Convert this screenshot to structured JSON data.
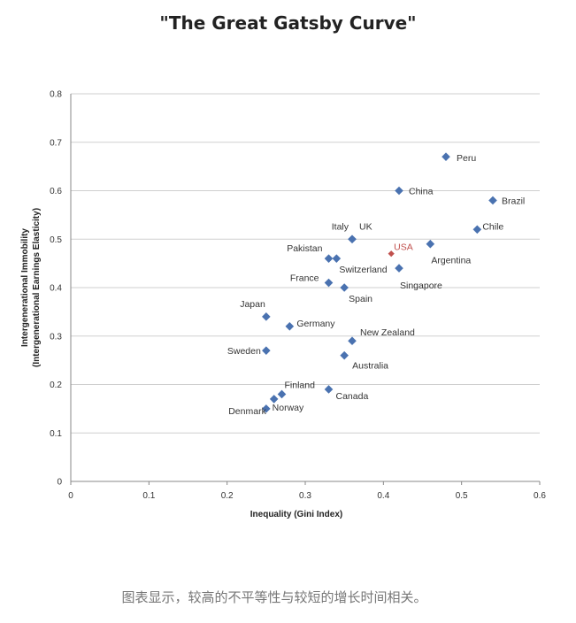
{
  "chart_data": {
    "type": "scatter",
    "title": "\"The Great Gatsby Curve\"",
    "xlabel": "Inequality (Gini Index)",
    "ylabel_line1": "Intergenerational Immobility",
    "ylabel_line2": "(Intergenerational Earnings Elasticity)",
    "xlim": [
      0,
      0.6
    ],
    "ylim": [
      0,
      0.8
    ],
    "xticks": [
      "0",
      "0.1",
      "0.2",
      "0.3",
      "0.4",
      "0.5",
      "0.6"
    ],
    "yticks": [
      "0",
      "0.1",
      "0.2",
      "0.3",
      "0.4",
      "0.5",
      "0.6",
      "0.7",
      "0.8"
    ],
    "grid": true,
    "marker_color": "#4a72b0",
    "highlight_color": "#c0504d",
    "points": [
      {
        "label": "Peru",
        "x": 0.48,
        "y": 0.67
      },
      {
        "label": "China",
        "x": 0.42,
        "y": 0.6
      },
      {
        "label": "Brazil",
        "x": 0.54,
        "y": 0.58
      },
      {
        "label": "Chile",
        "x": 0.52,
        "y": 0.52
      },
      {
        "label": "UK",
        "x": 0.36,
        "y": 0.5
      },
      {
        "label": "Italy",
        "x": 0.36,
        "y": 0.5
      },
      {
        "label": "Argentina",
        "x": 0.46,
        "y": 0.49
      },
      {
        "label": "USA",
        "x": 0.41,
        "y": 0.47,
        "highlight": true
      },
      {
        "label": "Pakistan",
        "x": 0.33,
        "y": 0.46
      },
      {
        "label": "Switzerland",
        "x": 0.34,
        "y": 0.46
      },
      {
        "label": "Singapore",
        "x": 0.42,
        "y": 0.44
      },
      {
        "label": "France",
        "x": 0.33,
        "y": 0.41
      },
      {
        "label": "Spain",
        "x": 0.35,
        "y": 0.4
      },
      {
        "label": "Japan",
        "x": 0.25,
        "y": 0.34
      },
      {
        "label": "Germany",
        "x": 0.28,
        "y": 0.32
      },
      {
        "label": "New Zealand",
        "x": 0.36,
        "y": 0.29
      },
      {
        "label": "Sweden",
        "x": 0.25,
        "y": 0.27
      },
      {
        "label": "Australia",
        "x": 0.35,
        "y": 0.26
      },
      {
        "label": "Canada",
        "x": 0.33,
        "y": 0.19
      },
      {
        "label": "Finland",
        "x": 0.27,
        "y": 0.18
      },
      {
        "label": "Norway",
        "x": 0.26,
        "y": 0.17
      },
      {
        "label": "Denmark",
        "x": 0.25,
        "y": 0.15
      }
    ]
  },
  "caption": "图表显示，较高的不平等性与较短的增长时间相关。"
}
